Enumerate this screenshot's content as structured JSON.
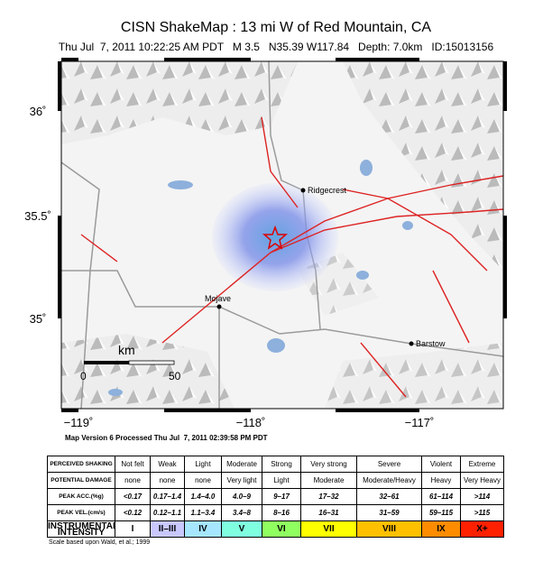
{
  "header": {
    "title": "CISN ShakeMap : 13 mi W of Red Mountain, CA",
    "subtitle": "Thu Jul  7, 2011 10:22:25 AM PDT   M 3.5   N35.39 W117.84   Depth: 7.0km   ID:15013156"
  },
  "map": {
    "latitude_labels": [
      "36˚",
      "35.5˚",
      "35˚"
    ],
    "longitude_labels": [
      "−119˚",
      "−118˚",
      "−117˚"
    ],
    "places": [
      "Ridgecrest",
      "Mojave",
      "Barstow"
    ],
    "scale": {
      "unit": "km",
      "ticks": [
        "0",
        "50"
      ]
    },
    "version": "Map Version 6 Processed Thu Jul  7, 2011 02:39:58 PM PDT"
  },
  "legend": {
    "rows": [
      [
        "PERCEIVED SHAKING",
        "Not felt",
        "Weak",
        "Light",
        "Moderate",
        "Strong",
        "Very strong",
        "Severe",
        "Violent",
        "Extreme"
      ],
      [
        "POTENTIAL DAMAGE",
        "none",
        "none",
        "none",
        "Very light",
        "Light",
        "Moderate",
        "Moderate/Heavy",
        "Heavy",
        "Very Heavy"
      ],
      [
        "PEAK ACC.(%g)",
        "<0.17",
        "0.17–1.4",
        "1.4–4.0",
        "4.0–9",
        "9–17",
        "17–32",
        "32–61",
        "61–114",
        ">114"
      ],
      [
        "PEAK VEL.(cm/s)",
        "<0.12",
        "0.12–1.1",
        "1.1–3.4",
        "3.4–8",
        "8–16",
        "16–31",
        "31–59",
        "59–115",
        ">115"
      ],
      [
        "INSTRUMENTAL INTENSITY",
        "I",
        "II–III",
        "IV",
        "V",
        "VI",
        "VII",
        "VIII",
        "IX",
        "X+"
      ]
    ]
  },
  "footnote": "Scale based upon Wald, et al.; 1999"
}
